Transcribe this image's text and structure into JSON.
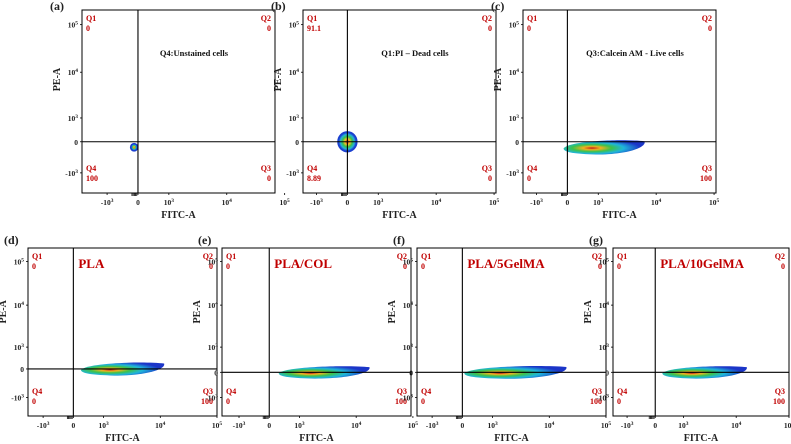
{
  "chart_data": [
    {
      "type": "scatter",
      "panel": "(a)",
      "title": "Q4:Unstained cells",
      "xlabel": "FITC-A",
      "ylabel": "PE-A",
      "quadrants": {
        "Q1": "0",
        "Q2": "0",
        "Q3": "0",
        "Q4": "100"
      },
      "population": {
        "x_center": -10,
        "y_center": 10,
        "spread": "small"
      }
    },
    {
      "type": "scatter",
      "panel": "(b)",
      "title": "Q1:PI – Dead cells",
      "xlabel": "FITC-A",
      "ylabel": "PE-A",
      "quadrants": {
        "Q1": "91.1",
        "Q2": "0",
        "Q3": "0",
        "Q4": "8.89"
      },
      "population": {
        "x_center": 0,
        "y_center": 20,
        "spread": "medium"
      }
    },
    {
      "type": "scatter",
      "panel": "(c)",
      "title": "Q3:Calcein AM - Live cells",
      "xlabel": "FITC-A",
      "ylabel": "PE-A",
      "quadrants": {
        "Q1": "0",
        "Q2": "0",
        "Q3": "100",
        "Q4": "0"
      },
      "population": {
        "x_center": 300,
        "y_center": 0,
        "spread": "elongated"
      }
    },
    {
      "type": "scatter",
      "panel": "(d)",
      "title": "PLA",
      "xlabel": "FITC-A",
      "ylabel": "PE-A",
      "quadrants": {
        "Q1": "0",
        "Q2": "0",
        "Q3": "100",
        "Q4": "0"
      },
      "population": {
        "x_center": 1500,
        "y_center": 0,
        "spread": "elongated"
      }
    },
    {
      "type": "scatter",
      "panel": "(e)",
      "title": "PLA/COL",
      "xlabel": "FITC-A",
      "ylabel": "PE-A",
      "quadrants": {
        "Q1": "0",
        "Q2": "0",
        "Q3": "100",
        "Q4": "0"
      },
      "population": {
        "x_center": 2000,
        "y_center": 0,
        "spread": "elongated"
      }
    },
    {
      "type": "scatter",
      "panel": "(f)",
      "title": "PLA/5GelMA",
      "xlabel": "FITC-A",
      "ylabel": "PE-A",
      "quadrants": {
        "Q1": "0",
        "Q2": "0",
        "Q3": "100",
        "Q4": "0"
      },
      "population": {
        "x_center": 1500,
        "y_center": 0,
        "spread": "elongated"
      }
    },
    {
      "type": "scatter",
      "panel": "(g)",
      "title": "PLA/10GelMA",
      "xlabel": "FITC-A",
      "ylabel": "PE-A",
      "quadrants": {
        "Q1": "0",
        "Q2": "0",
        "Q3": "100",
        "Q4": "0"
      },
      "population": {
        "x_center": 2500,
        "y_center": 0,
        "spread": "elongated"
      }
    }
  ],
  "tick_labels": {
    "x": [
      "-10",
      "0",
      "10",
      "10",
      "10"
    ],
    "x_exp": [
      "3",
      "",
      "3",
      "4",
      "5"
    ],
    "y": [
      "10",
      "10",
      "10",
      "0",
      "-10"
    ],
    "y_exp": [
      "5",
      "4",
      "3",
      "",
      "3"
    ]
  },
  "colors": {
    "quadrant_text": "#c00000",
    "axes": "#000000"
  }
}
